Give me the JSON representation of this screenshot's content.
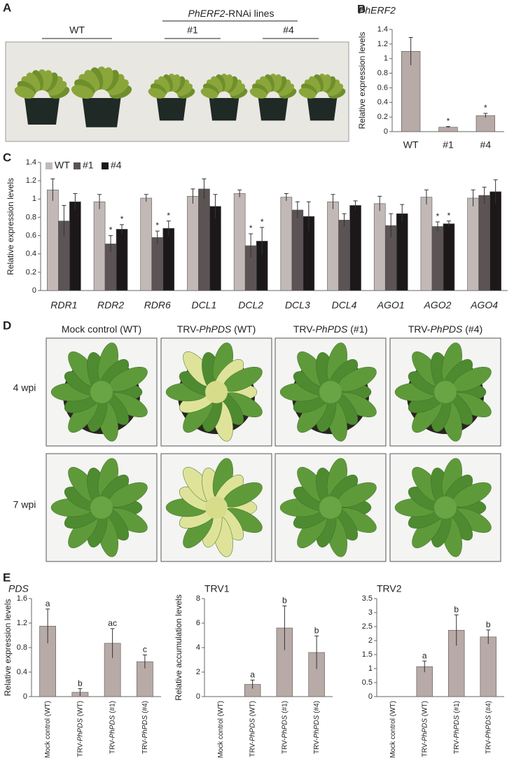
{
  "panel_labels": [
    "A",
    "B",
    "C",
    "D",
    "E"
  ],
  "panel_a": {
    "title_gene": "PhERF2",
    "title_rest": "-RNAi lines",
    "groups": [
      "WT",
      "#1",
      "#4"
    ]
  },
  "panel_d": {
    "columns": [
      [
        "Mock control (WT)"
      ],
      [
        "TRV-",
        "PhPDS",
        " (WT)"
      ],
      [
        "TRV-",
        "PhPDS",
        " (#1)"
      ],
      [
        "TRV-",
        "PhPDS",
        " (#4)"
      ]
    ],
    "rows": [
      "4 wpi",
      "7 wpi"
    ]
  },
  "chart_data": [
    {
      "type": "bar",
      "title": "PhERF2",
      "y_label": "Relative expression levels",
      "categories": [
        "WT",
        "#1",
        "#4"
      ],
      "values": [
        1.1,
        0.06,
        0.22
      ],
      "errors": [
        0.19,
        0.01,
        0.03
      ],
      "labels": [
        null,
        "*",
        "*"
      ],
      "color": "#b8aaa6",
      "ylim": [
        0,
        1.4
      ],
      "yticks": [
        0,
        0.2,
        0.4,
        0.6,
        0.8,
        1,
        1.2,
        1.4
      ]
    },
    {
      "type": "bar",
      "y_label": "Relative expression levels",
      "categories": [
        "RDR1",
        "RDR2",
        "RDR6",
        "DCL1",
        "DCL2",
        "DCL3",
        "DCL4",
        "AGO1",
        "AGO2",
        "AGO4"
      ],
      "series": [
        {
          "name": "WT",
          "color": "#c2b9b7",
          "values": [
            1.1,
            0.97,
            1.01,
            1.03,
            1.06,
            1.02,
            0.97,
            0.95,
            1.02,
            1.01
          ],
          "errors": [
            0.12,
            0.08,
            0.04,
            0.08,
            0.04,
            0.04,
            0.08,
            0.08,
            0.08,
            0.09
          ],
          "labels": [
            null,
            null,
            null,
            null,
            null,
            null,
            null,
            null,
            null,
            null
          ]
        },
        {
          "name": "#1",
          "color": "#5c5354",
          "values": [
            0.76,
            0.51,
            0.58,
            1.11,
            0.49,
            0.88,
            0.77,
            0.71,
            0.7,
            1.04
          ],
          "errors": [
            0.17,
            0.09,
            0.07,
            0.11,
            0.13,
            0.09,
            0.07,
            0.13,
            0.05,
            0.09
          ],
          "labels": [
            null,
            "*",
            "*",
            null,
            "*",
            null,
            null,
            null,
            "*",
            null
          ]
        },
        {
          "name": "#4",
          "color": "#1c1819",
          "values": [
            0.97,
            0.67,
            0.68,
            0.92,
            0.54,
            0.81,
            0.93,
            0.84,
            0.73,
            1.08
          ],
          "errors": [
            0.09,
            0.05,
            0.08,
            0.13,
            0.15,
            0.16,
            0.05,
            0.1,
            0.03,
            0.13
          ],
          "labels": [
            null,
            "*",
            "*",
            null,
            "*",
            null,
            null,
            null,
            "*",
            null
          ]
        }
      ],
      "ylim": [
        0,
        1.4
      ],
      "yticks": [
        0,
        0.2,
        0.4,
        0.6,
        0.8,
        1,
        1.2,
        1.4
      ]
    },
    {
      "type": "bar",
      "title": "PDS",
      "y_label": "Relative expression levels",
      "categories": [
        [
          "Mock control (WT)"
        ],
        [
          "TRV-",
          "PhPDS",
          " (WT)"
        ],
        [
          "TRV-",
          "PhPDS",
          " (#1)"
        ],
        [
          "TRV-",
          "PhPDS",
          " (#4)"
        ]
      ],
      "values": [
        1.15,
        0.07,
        0.87,
        0.57
      ],
      "errors": [
        0.28,
        0.06,
        0.24,
        0.11
      ],
      "labels": [
        "a",
        "b",
        "ac",
        "c"
      ],
      "color": "#b8aaa6",
      "ylim": [
        0,
        1.6
      ],
      "yticks": [
        0,
        0.4,
        0.8,
        1.2,
        1.6
      ]
    },
    {
      "type": "bar",
      "title": "TRV1",
      "y_label": "Relative accumulation levels",
      "categories": [
        [
          "Mock control (WT)"
        ],
        [
          "TRV-",
          "PhPDS",
          " (WT)"
        ],
        [
          "TRV-",
          "PhPDS",
          " (#1)"
        ],
        [
          "TRV-",
          "PhPDS",
          " (#4)"
        ]
      ],
      "values": [
        null,
        1.0,
        5.6,
        3.6
      ],
      "errors": [
        null,
        0.35,
        1.8,
        1.35
      ],
      "labels": [
        null,
        "a",
        "b",
        "b"
      ],
      "color": "#b8aaa6",
      "ylim": [
        0,
        8
      ],
      "yticks": [
        0,
        2,
        4,
        6,
        8
      ]
    },
    {
      "type": "bar",
      "title": "TRV2",
      "categories": [
        [
          "Mock control (WT)"
        ],
        [
          "TRV-",
          "PhPDS",
          " (WT)"
        ],
        [
          "TRV-",
          "PhPDS",
          " (#1)"
        ],
        [
          "TRV-",
          "PhPDS",
          " (#4)"
        ]
      ],
      "values": [
        null,
        1.07,
        2.37,
        2.13
      ],
      "errors": [
        null,
        0.2,
        0.55,
        0.25
      ],
      "labels": [
        null,
        "a",
        "b",
        "b"
      ],
      "color": "#b8aaa6",
      "ylim": [
        0,
        3.5
      ],
      "yticks": [
        0,
        0.5,
        1,
        1.5,
        2,
        2.5,
        3,
        3.5
      ]
    }
  ]
}
